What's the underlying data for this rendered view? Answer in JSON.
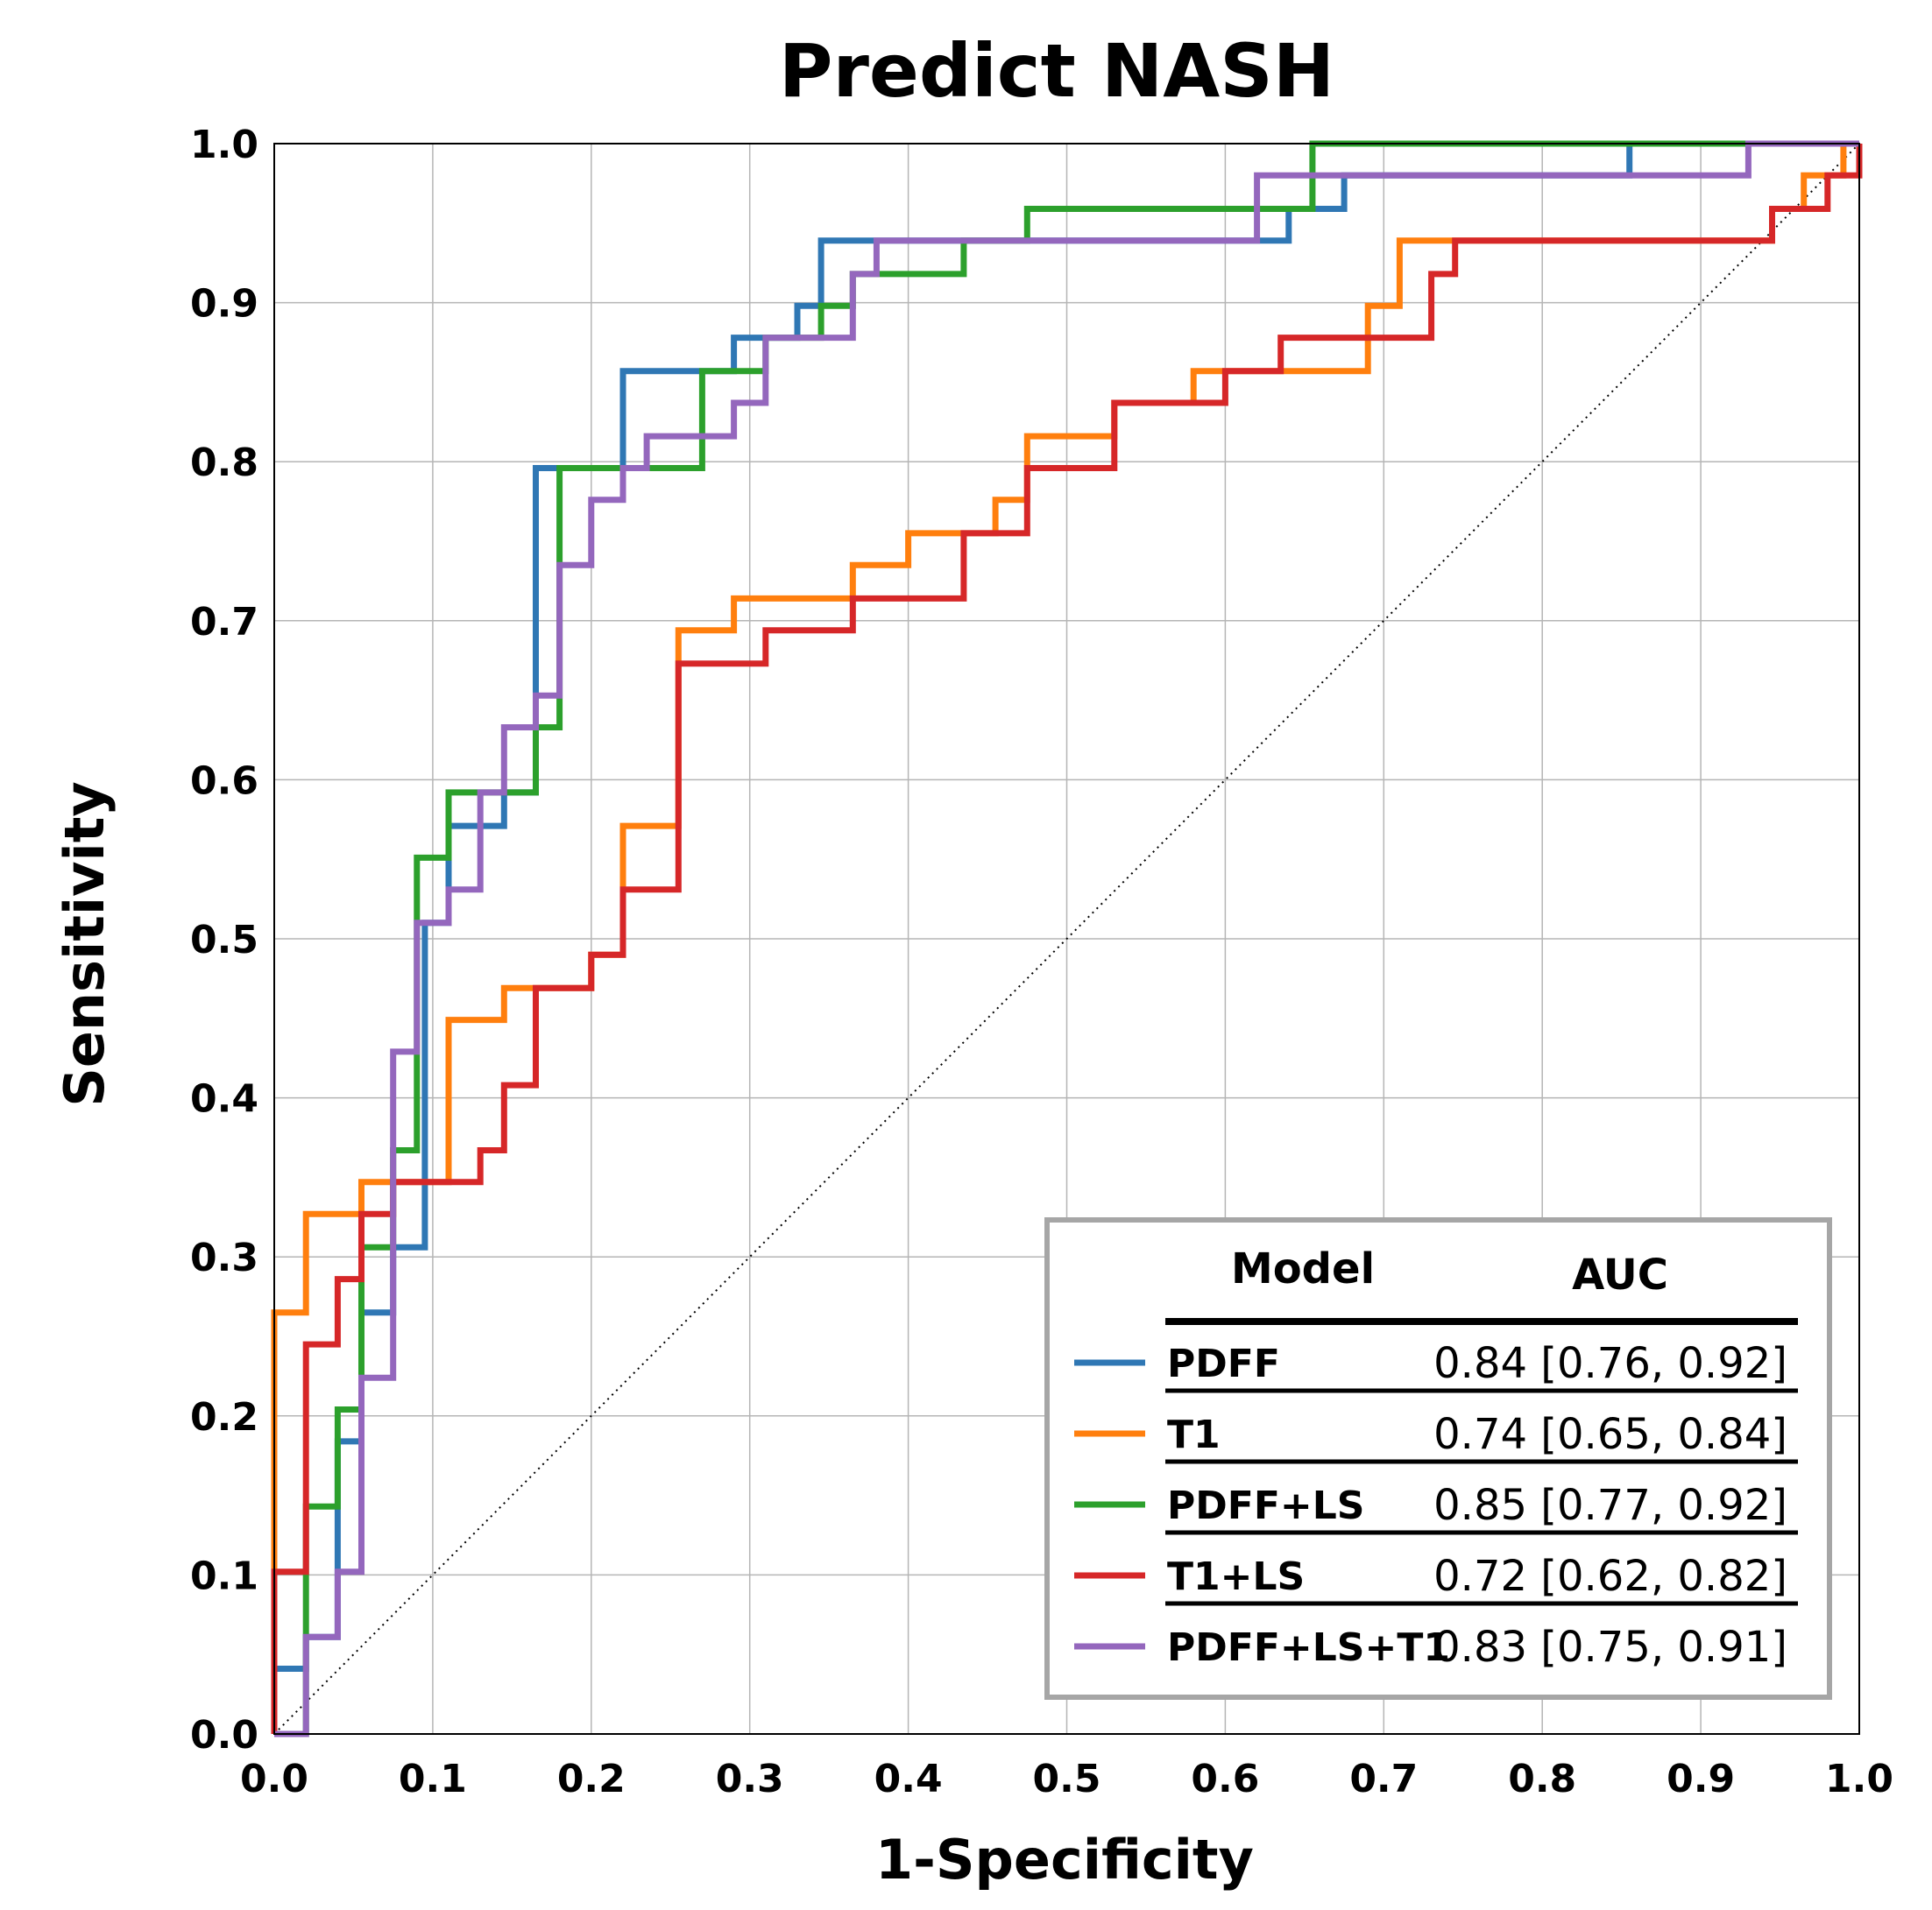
{
  "chart_data": {
    "type": "line",
    "title": "Predict NASH",
    "xlabel": "1-Specificity",
    "ylabel": "Sensitivity",
    "xlim": [
      0,
      1
    ],
    "ylim": [
      0,
      1
    ],
    "grid": true,
    "x_ticks": [
      "0.0",
      "0.1",
      "0.2",
      "0.3",
      "0.4",
      "0.5",
      "0.6",
      "0.7",
      "0.8",
      "0.9",
      "1.0"
    ],
    "y_ticks": [
      "0.0",
      "0.1",
      "0.2",
      "0.3",
      "0.4",
      "0.5",
      "0.6",
      "0.7",
      "0.8",
      "0.9",
      "1.0"
    ],
    "reference_line": {
      "style": "dotted",
      "from": [
        0,
        0
      ],
      "to": [
        1,
        1
      ]
    },
    "legend": {
      "placement": "bottom-right",
      "header_model": "Model",
      "header_auc": "AUC"
    },
    "series": [
      {
        "name": "PDFF",
        "auc": "0.84 [0.76, 0.92]",
        "color": "#2f77b4",
        "points": [
          [
            0,
            0
          ],
          [
            0,
            0.041
          ],
          [
            0.02,
            0.041
          ],
          [
            0.02,
            0.061
          ],
          [
            0.04,
            0.061
          ],
          [
            0.04,
            0.184
          ],
          [
            0.055,
            0.184
          ],
          [
            0.055,
            0.265
          ],
          [
            0.075,
            0.265
          ],
          [
            0.075,
            0.306
          ],
          [
            0.095,
            0.306
          ],
          [
            0.095,
            0.51
          ],
          [
            0.11,
            0.51
          ],
          [
            0.11,
            0.571
          ],
          [
            0.145,
            0.571
          ],
          [
            0.145,
            0.592
          ],
          [
            0.165,
            0.592
          ],
          [
            0.165,
            0.796
          ],
          [
            0.22,
            0.796
          ],
          [
            0.22,
            0.857
          ],
          [
            0.29,
            0.857
          ],
          [
            0.29,
            0.878
          ],
          [
            0.33,
            0.878
          ],
          [
            0.33,
            0.898
          ],
          [
            0.345,
            0.898
          ],
          [
            0.345,
            0.939
          ],
          [
            0.64,
            0.939
          ],
          [
            0.64,
            0.959
          ],
          [
            0.675,
            0.959
          ],
          [
            0.675,
            0.98
          ],
          [
            0.855,
            0.98
          ],
          [
            0.855,
            1.0
          ],
          [
            1.0,
            1.0
          ]
        ]
      },
      {
        "name": "T1",
        "auc": "0.74 [0.65, 0.84]",
        "color": "#ff7f0e",
        "points": [
          [
            0,
            0
          ],
          [
            0,
            0.265
          ],
          [
            0.02,
            0.265
          ],
          [
            0.02,
            0.327
          ],
          [
            0.055,
            0.327
          ],
          [
            0.055,
            0.347
          ],
          [
            0.11,
            0.347
          ],
          [
            0.11,
            0.449
          ],
          [
            0.145,
            0.449
          ],
          [
            0.145,
            0.469
          ],
          [
            0.2,
            0.469
          ],
          [
            0.2,
            0.49
          ],
          [
            0.22,
            0.49
          ],
          [
            0.22,
            0.571
          ],
          [
            0.255,
            0.571
          ],
          [
            0.255,
            0.694
          ],
          [
            0.29,
            0.694
          ],
          [
            0.29,
            0.714
          ],
          [
            0.365,
            0.714
          ],
          [
            0.365,
            0.735
          ],
          [
            0.4,
            0.735
          ],
          [
            0.4,
            0.755
          ],
          [
            0.455,
            0.755
          ],
          [
            0.455,
            0.776
          ],
          [
            0.475,
            0.776
          ],
          [
            0.475,
            0.816
          ],
          [
            0.53,
            0.816
          ],
          [
            0.53,
            0.837
          ],
          [
            0.58,
            0.837
          ],
          [
            0.58,
            0.857
          ],
          [
            0.69,
            0.857
          ],
          [
            0.69,
            0.898
          ],
          [
            0.71,
            0.898
          ],
          [
            0.71,
            0.939
          ],
          [
            0.945,
            0.939
          ],
          [
            0.945,
            0.959
          ],
          [
            0.965,
            0.959
          ],
          [
            0.965,
            0.98
          ],
          [
            0.99,
            0.98
          ],
          [
            0.99,
            1.0
          ],
          [
            1.0,
            1.0
          ]
        ]
      },
      {
        "name": "PDFF+LS",
        "auc": "0.85 [0.77, 0.92]",
        "color": "#2ca02c",
        "points": [
          [
            0,
            0
          ],
          [
            0.02,
            0
          ],
          [
            0.02,
            0.143
          ],
          [
            0.04,
            0.143
          ],
          [
            0.04,
            0.204
          ],
          [
            0.055,
            0.204
          ],
          [
            0.055,
            0.306
          ],
          [
            0.075,
            0.306
          ],
          [
            0.075,
            0.367
          ],
          [
            0.09,
            0.367
          ],
          [
            0.09,
            0.551
          ],
          [
            0.11,
            0.551
          ],
          [
            0.11,
            0.592
          ],
          [
            0.165,
            0.592
          ],
          [
            0.165,
            0.633
          ],
          [
            0.18,
            0.633
          ],
          [
            0.18,
            0.796
          ],
          [
            0.27,
            0.796
          ],
          [
            0.27,
            0.857
          ],
          [
            0.31,
            0.857
          ],
          [
            0.31,
            0.878
          ],
          [
            0.345,
            0.878
          ],
          [
            0.345,
            0.898
          ],
          [
            0.365,
            0.898
          ],
          [
            0.365,
            0.918
          ],
          [
            0.435,
            0.918
          ],
          [
            0.435,
            0.939
          ],
          [
            0.475,
            0.939
          ],
          [
            0.475,
            0.959
          ],
          [
            0.655,
            0.959
          ],
          [
            0.655,
            1.0
          ],
          [
            1.0,
            1.0
          ]
        ]
      },
      {
        "name": "T1+LS",
        "auc": "0.72 [0.62, 0.82]",
        "color": "#d62728",
        "points": [
          [
            0,
            0
          ],
          [
            0,
            0.102
          ],
          [
            0.02,
            0.102
          ],
          [
            0.02,
            0.245
          ],
          [
            0.04,
            0.245
          ],
          [
            0.04,
            0.286
          ],
          [
            0.055,
            0.286
          ],
          [
            0.055,
            0.327
          ],
          [
            0.075,
            0.327
          ],
          [
            0.075,
            0.347
          ],
          [
            0.13,
            0.347
          ],
          [
            0.13,
            0.367
          ],
          [
            0.145,
            0.367
          ],
          [
            0.145,
            0.408
          ],
          [
            0.165,
            0.408
          ],
          [
            0.165,
            0.469
          ],
          [
            0.2,
            0.469
          ],
          [
            0.2,
            0.49
          ],
          [
            0.22,
            0.49
          ],
          [
            0.22,
            0.531
          ],
          [
            0.255,
            0.531
          ],
          [
            0.255,
            0.673
          ],
          [
            0.31,
            0.673
          ],
          [
            0.31,
            0.694
          ],
          [
            0.365,
            0.694
          ],
          [
            0.365,
            0.714
          ],
          [
            0.435,
            0.714
          ],
          [
            0.435,
            0.755
          ],
          [
            0.475,
            0.755
          ],
          [
            0.475,
            0.796
          ],
          [
            0.53,
            0.796
          ],
          [
            0.53,
            0.837
          ],
          [
            0.6,
            0.837
          ],
          [
            0.6,
            0.857
          ],
          [
            0.635,
            0.857
          ],
          [
            0.635,
            0.878
          ],
          [
            0.71,
            0.878
          ],
          [
            0.71,
            0.878
          ],
          [
            0.73,
            0.878
          ],
          [
            0.73,
            0.918
          ],
          [
            0.745,
            0.918
          ],
          [
            0.745,
            0.939
          ],
          [
            0.945,
            0.939
          ],
          [
            0.945,
            0.959
          ],
          [
            0.98,
            0.959
          ],
          [
            0.98,
            0.98
          ],
          [
            1.0,
            0.98
          ],
          [
            1.0,
            1.0
          ]
        ]
      },
      {
        "name": "PDFF+LS+T1",
        "auc": "0.83 [0.75, 0.91]",
        "color": "#9467bd",
        "points": [
          [
            0,
            0
          ],
          [
            0.02,
            0
          ],
          [
            0.02,
            0.061
          ],
          [
            0.04,
            0.061
          ],
          [
            0.04,
            0.102
          ],
          [
            0.055,
            0.102
          ],
          [
            0.055,
            0.224
          ],
          [
            0.075,
            0.224
          ],
          [
            0.075,
            0.429
          ],
          [
            0.09,
            0.429
          ],
          [
            0.09,
            0.51
          ],
          [
            0.11,
            0.51
          ],
          [
            0.11,
            0.531
          ],
          [
            0.13,
            0.531
          ],
          [
            0.13,
            0.592
          ],
          [
            0.145,
            0.592
          ],
          [
            0.145,
            0.633
          ],
          [
            0.165,
            0.633
          ],
          [
            0.165,
            0.653
          ],
          [
            0.18,
            0.653
          ],
          [
            0.18,
            0.735
          ],
          [
            0.2,
            0.735
          ],
          [
            0.2,
            0.776
          ],
          [
            0.22,
            0.776
          ],
          [
            0.22,
            0.796
          ],
          [
            0.235,
            0.796
          ],
          [
            0.235,
            0.816
          ],
          [
            0.29,
            0.816
          ],
          [
            0.29,
            0.837
          ],
          [
            0.31,
            0.837
          ],
          [
            0.31,
            0.878
          ],
          [
            0.365,
            0.878
          ],
          [
            0.365,
            0.918
          ],
          [
            0.38,
            0.918
          ],
          [
            0.38,
            0.939
          ],
          [
            0.62,
            0.939
          ],
          [
            0.62,
            0.98
          ],
          [
            0.93,
            0.98
          ],
          [
            0.93,
            1.0
          ],
          [
            1.0,
            1.0
          ]
        ]
      }
    ]
  }
}
